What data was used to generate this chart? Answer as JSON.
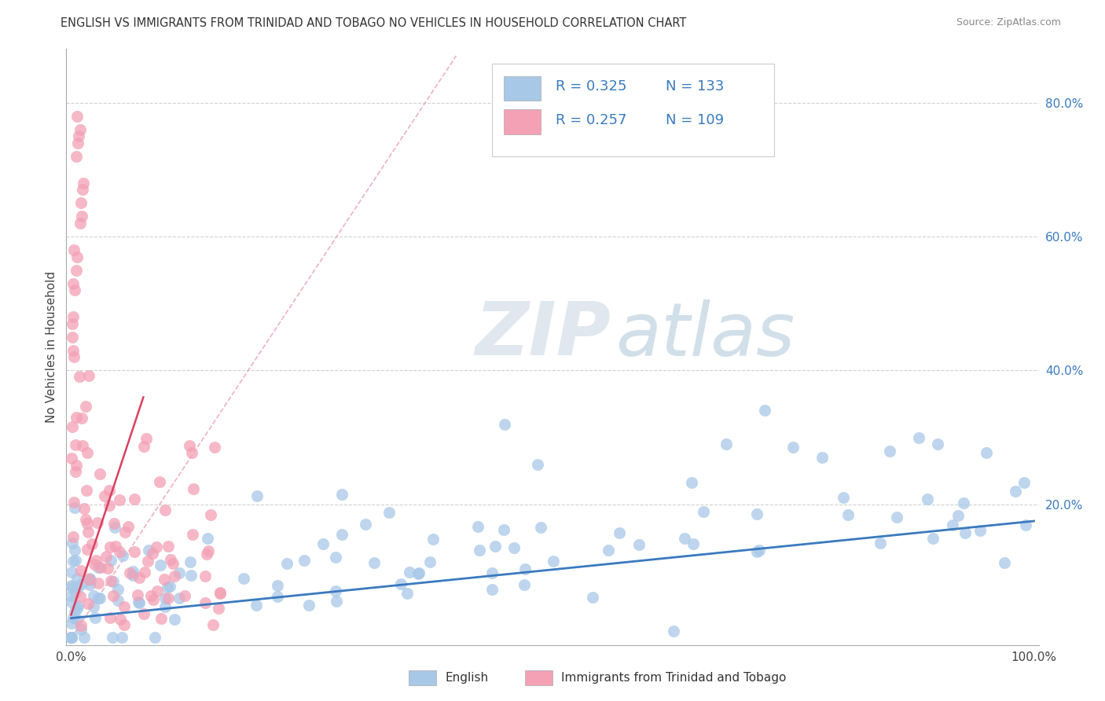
{
  "title": "ENGLISH VS IMMIGRANTS FROM TRINIDAD AND TOBAGO NO VEHICLES IN HOUSEHOLD CORRELATION CHART",
  "source": "Source: ZipAtlas.com",
  "ylabel": "No Vehicles in Household",
  "right_yticks": [
    "80.0%",
    "60.0%",
    "40.0%",
    "20.0%"
  ],
  "right_ytick_vals": [
    0.8,
    0.6,
    0.4,
    0.2
  ],
  "legend_labels": [
    "English",
    "Immigrants from Trinidad and Tobago"
  ],
  "blue_R": "0.325",
  "blue_N": "133",
  "pink_R": "0.257",
  "pink_N": "109",
  "watermark_zip": "ZIP",
  "watermark_atlas": "atlas",
  "blue_color": "#a8c8e8",
  "pink_color": "#f4a0b5",
  "blue_line_color": "#3a7abf",
  "pink_line_color": "#d94060",
  "pink_dash_color": "#e8a0b0",
  "legend_R_color": "#3a7abf",
  "background_color": "#ffffff",
  "grid_color": "#cccccc",
  "ylim_max": 0.88
}
